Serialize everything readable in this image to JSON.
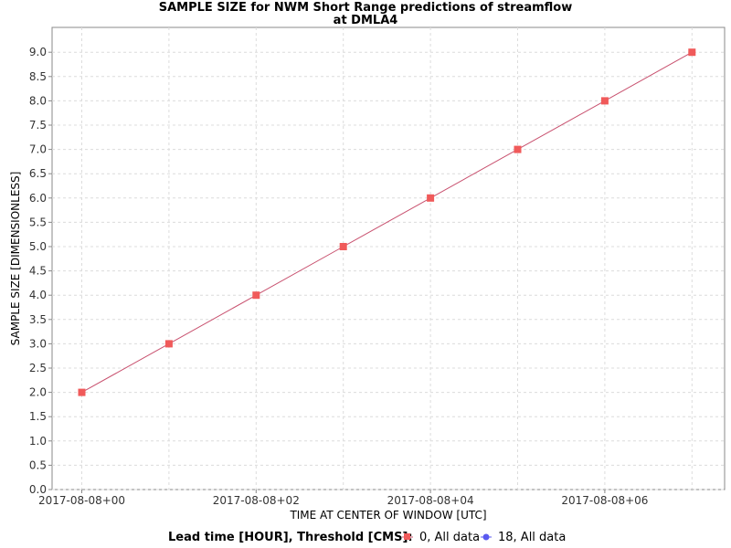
{
  "chart_data": {
    "type": "line",
    "title": "SAMPLE SIZE for NWM Short Range predictions of streamflow",
    "subtitle": "at DMLA4",
    "xlabel": "TIME AT CENTER OF WINDOW [UTC]",
    "ylabel": "SAMPLE SIZE [DIMENSIONLESS]",
    "x_tick_labels": [
      "2017-08-08+00",
      "2017-08-08+02",
      "2017-08-08+04",
      "2017-08-08+06"
    ],
    "y_tick_labels": [
      "0.0",
      "0.5",
      "1.0",
      "1.5",
      "2.0",
      "2.5",
      "3.0",
      "3.5",
      "4.0",
      "4.5",
      "5.0",
      "5.5",
      "6.0",
      "6.5",
      "7.0",
      "7.5",
      "8.0",
      "8.5",
      "9.0"
    ],
    "xlim": [
      "2017-08-08 00:00",
      "2017-08-08 07:00"
    ],
    "ylim": [
      0,
      9.4
    ],
    "grid": true,
    "legend_position": "bottom",
    "legend_title": "Lead time [HOUR], Threshold [CMS]:",
    "series": [
      {
        "name": "0, All data",
        "color": "#f05a5a",
        "line_color": "#c8506e",
        "marker": "square",
        "x": [
          "2017-08-08 00:00",
          "2017-08-08 01:00",
          "2017-08-08 02:00",
          "2017-08-08 03:00",
          "2017-08-08 04:00",
          "2017-08-08 05:00",
          "2017-08-08 06:00",
          "2017-08-08 07:00"
        ],
        "values": [
          2,
          3,
          4,
          5,
          6,
          7,
          8,
          9
        ]
      },
      {
        "name": "18, All data",
        "color": "#5a5af0",
        "marker": "circle",
        "x": [],
        "values": []
      }
    ]
  }
}
